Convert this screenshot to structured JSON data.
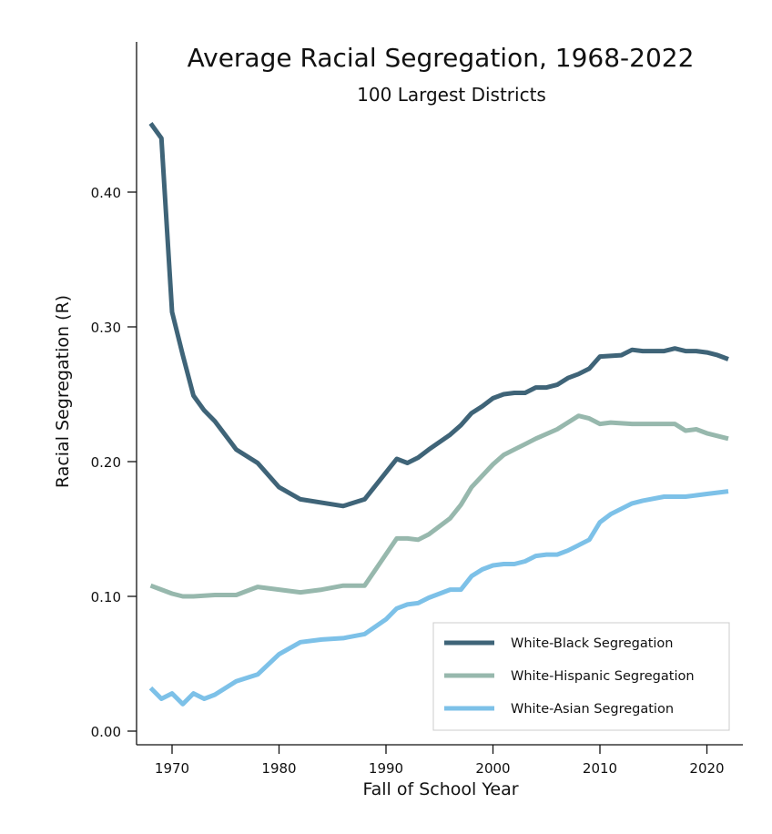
{
  "chart_data": {
    "type": "line",
    "title": "Average Racial Segregation, 1968-2022",
    "subtitle": "100 Largest Districts",
    "xlabel": "Fall of School Year",
    "ylabel": "Racial Segregation (R)",
    "xlim": [
      1967,
      2023.5
    ],
    "ylim": [
      -0.01,
      0.52
    ],
    "x_ticks": [
      1970,
      1980,
      1990,
      2000,
      2010,
      2020
    ],
    "y_ticks": [
      0.0,
      0.1,
      0.2,
      0.3,
      0.4
    ],
    "y_tick_labels": [
      "0.00",
      "0.10",
      "0.20",
      "0.30",
      "0.40"
    ],
    "grid": false,
    "legend_position": "bottom-right",
    "series": [
      {
        "name": "White-Black Segregation",
        "color": "#3f6478",
        "x": [
          1968,
          1969,
          1970,
          1971,
          1972,
          1973,
          1974,
          1976,
          1978,
          1980,
          1982,
          1986,
          1988,
          1991,
          1992,
          1993,
          1994,
          1996,
          1997,
          1998,
          1999,
          2000,
          2001,
          2002,
          2003,
          2004,
          2005,
          2006,
          2007,
          2008,
          2009,
          2010,
          2012,
          2013,
          2014,
          2016,
          2017,
          2018,
          2019,
          2020,
          2021,
          2022
        ],
        "y": [
          0.451,
          0.44,
          0.311,
          0.279,
          0.249,
          0.238,
          0.23,
          0.209,
          0.199,
          0.181,
          0.172,
          0.167,
          0.172,
          0.202,
          0.199,
          0.203,
          0.209,
          0.22,
          0.227,
          0.236,
          0.241,
          0.247,
          0.25,
          0.251,
          0.251,
          0.255,
          0.255,
          0.257,
          0.262,
          0.265,
          0.269,
          0.278,
          0.279,
          0.283,
          0.282,
          0.282,
          0.284,
          0.282,
          0.282,
          0.281,
          0.279,
          0.276
        ]
      },
      {
        "name": "White-Hispanic Segregation",
        "color": "#97b8ad",
        "x": [
          1968,
          1969,
          1970,
          1971,
          1972,
          1974,
          1976,
          1978,
          1980,
          1982,
          1984,
          1986,
          1988,
          1991,
          1992,
          1993,
          1994,
          1996,
          1997,
          1998,
          2000,
          2001,
          2002,
          2003,
          2004,
          2006,
          2008,
          2009,
          2010,
          2011,
          2013,
          2014,
          2016,
          2017,
          2018,
          2019,
          2020,
          2022
        ],
        "y": [
          0.108,
          0.105,
          0.102,
          0.1,
          0.1,
          0.101,
          0.101,
          0.107,
          0.105,
          0.103,
          0.105,
          0.108,
          0.108,
          0.143,
          0.143,
          0.142,
          0.146,
          0.158,
          0.168,
          0.181,
          0.198,
          0.205,
          0.209,
          0.213,
          0.217,
          0.224,
          0.234,
          0.232,
          0.228,
          0.229,
          0.228,
          0.228,
          0.228,
          0.228,
          0.223,
          0.224,
          0.221,
          0.217
        ]
      },
      {
        "name": "White-Asian Segregation",
        "color": "#7dc1e8",
        "x": [
          1968,
          1969,
          1970,
          1971,
          1972,
          1973,
          1974,
          1976,
          1978,
          1980,
          1982,
          1984,
          1986,
          1988,
          1990,
          1991,
          1992,
          1993,
          1994,
          1996,
          1997,
          1998,
          1999,
          2000,
          2001,
          2002,
          2003,
          2004,
          2005,
          2006,
          2007,
          2008,
          2009,
          2010,
          2011,
          2012,
          2013,
          2014,
          2016,
          2017,
          2018,
          2019,
          2020,
          2022
        ],
        "y": [
          0.032,
          0.024,
          0.028,
          0.02,
          0.028,
          0.024,
          0.027,
          0.037,
          0.042,
          0.057,
          0.066,
          0.068,
          0.069,
          0.072,
          0.083,
          0.091,
          0.094,
          0.095,
          0.099,
          0.105,
          0.105,
          0.115,
          0.12,
          0.123,
          0.124,
          0.124,
          0.126,
          0.13,
          0.131,
          0.131,
          0.134,
          0.138,
          0.142,
          0.155,
          0.161,
          0.165,
          0.169,
          0.171,
          0.174,
          0.174,
          0.174,
          0.175,
          0.176,
          0.178
        ]
      }
    ]
  }
}
